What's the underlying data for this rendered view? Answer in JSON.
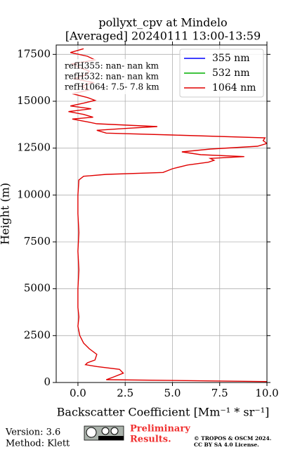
{
  "chart_data": {
    "type": "line",
    "title": [
      "pollyxt_cpv at Mindelo",
      "[Averaged] 20240111 13:00-13:59"
    ],
    "x_label": "Backscatter Coefficient [Mm⁻¹ * sr⁻¹]",
    "y_label": "Height (m)",
    "y": [
      50,
      150,
      300,
      500,
      700,
      850,
      950,
      1050,
      1200,
      1500,
      1800,
      2100,
      2500,
      3000,
      3500,
      4000,
      5000,
      6000,
      7000,
      8000,
      9000,
      10000,
      10800,
      11000,
      11100,
      11200,
      11400,
      11600,
      11750,
      11850,
      11950,
      12050,
      12150,
      12300,
      12450,
      12600,
      12750,
      12900,
      13050,
      13200,
      13300,
      13450,
      13550,
      13650,
      13800,
      13900,
      14050,
      14150,
      14300,
      14450,
      14600,
      14750,
      14900,
      15050,
      15200,
      15400,
      15600,
      15800,
      16000,
      16200,
      16400,
      16600,
      16800,
      17000,
      17200,
      17400,
      17600,
      17800
    ],
    "series": [
      {
        "name": "355 nm",
        "color": "#0000ff",
        "values": [
          null,
          null,
          null,
          null,
          null,
          null,
          null,
          null,
          null,
          null,
          null,
          null,
          null,
          null,
          null,
          null,
          null,
          null,
          null,
          null,
          null,
          null,
          null,
          null,
          null,
          null,
          null,
          null,
          null,
          null,
          null,
          null,
          null,
          null,
          null,
          null,
          null,
          null,
          null,
          null,
          null,
          null,
          null,
          null,
          null,
          null,
          null,
          null,
          null,
          null,
          null,
          null,
          null,
          null,
          null,
          null,
          null,
          null,
          null,
          null,
          null,
          null,
          null,
          null,
          null,
          null,
          null,
          null
        ]
      },
      {
        "name": "532 nm",
        "color": "#00b000",
        "values": [
          null,
          null,
          null,
          null,
          null,
          null,
          null,
          null,
          null,
          null,
          null,
          null,
          null,
          null,
          null,
          null,
          null,
          null,
          null,
          null,
          null,
          null,
          null,
          null,
          null,
          null,
          null,
          null,
          null,
          null,
          null,
          null,
          null,
          null,
          null,
          null,
          null,
          null,
          null,
          null,
          null,
          null,
          null,
          null,
          null,
          null,
          null,
          null,
          null,
          null,
          null,
          null,
          null,
          null,
          null,
          null,
          null,
          null,
          null,
          null,
          null,
          null,
          null,
          null,
          null,
          null,
          null,
          null
        ]
      },
      {
        "name": "1064 nm",
        "color": "#e00000",
        "values": [
          10,
          1.5,
          1.9,
          2.4,
          2.2,
          1.0,
          0.4,
          0.5,
          0.9,
          1.0,
          0.6,
          0.3,
          0.1,
          0.0,
          0.05,
          0.0,
          0.0,
          0.05,
          0.0,
          0.05,
          0.0,
          0.0,
          0.05,
          0.3,
          1.5,
          4.5,
          5.0,
          5.8,
          6.9,
          7.2,
          7.0,
          8.8,
          6.5,
          5.5,
          7.0,
          9.5,
          10.0,
          9.8,
          9.9,
          5.0,
          1.5,
          1.0,
          2.5,
          4.2,
          1.0,
          0.5,
          -0.3,
          0.8,
          0.3,
          -0.5,
          0.7,
          -0.4,
          0.3,
          0.9,
          0.5,
          -0.3,
          0.6,
          0.2,
          0.8,
          -0.2,
          0.4,
          0.6,
          0.1,
          -0.3,
          0.9,
          0.5,
          -0.4,
          0.3
        ]
      }
    ],
    "xlim": [
      -1.15,
      10
    ],
    "xticks": [
      {
        "value": 0,
        "label": "0.0"
      },
      {
        "value": 2.5,
        "label": "2.5"
      },
      {
        "value": 5,
        "label": "5.0"
      },
      {
        "value": 7.5,
        "label": "7.5"
      },
      {
        "value": 10,
        "label": "10.0"
      }
    ],
    "ylim": [
      0,
      18000
    ],
    "yticks": [
      0,
      2500,
      5000,
      7500,
      10000,
      12500,
      15000,
      17500
    ],
    "grid": true,
    "legend": "upper right",
    "annotations": [
      "refH355:  nan- nan km",
      "refH532:  nan- nan km",
      "refH1064:  7.5- 7.8 km"
    ]
  },
  "footer": {
    "version": "Version: 3.6",
    "method": "Method: Klett",
    "status": [
      "Preliminary",
      "Results."
    ],
    "license": [
      "© TROPOS & OSCM 2024.",
      "CC BY SA 4.0 License."
    ]
  }
}
